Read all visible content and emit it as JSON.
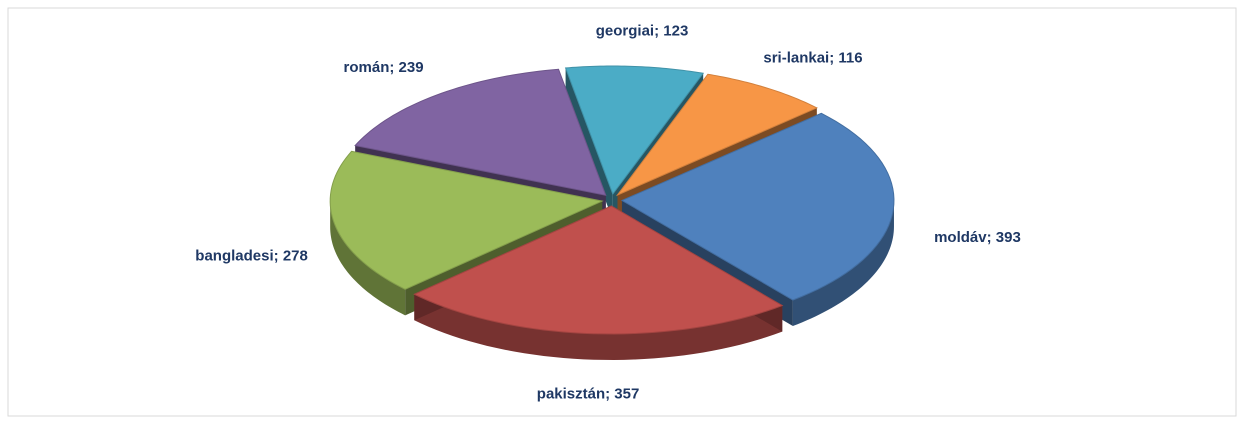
{
  "chart_data": {
    "type": "pie3d",
    "values": [
      123,
      116,
      393,
      357,
      278,
      239
    ],
    "value_labels": [
      "georgiai; 123",
      "sri-lankai; 116",
      "moldáv; 393",
      "pakisztán; 357",
      "bangladesi; 278",
      "román; 239"
    ],
    "colors": [
      "#4bacc6",
      "#f79646",
      "#4f81bd",
      "#c0504d",
      "#9bbb59",
      "#8064a2"
    ]
  }
}
